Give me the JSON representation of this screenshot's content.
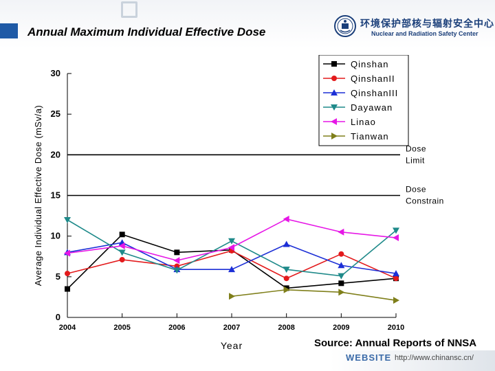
{
  "slide": {
    "title": "Annual Maximum Individual Effective Dose",
    "org_name_cn": "环境保护部核与辐射安全中心",
    "org_name_en": "Nuclear and Radiation Safety Center",
    "website_label": "WEBSITE",
    "website_url": "http://www.chinansc.cn/",
    "source_note": "Source: Annual Reports of NNSA"
  },
  "chart_data": {
    "type": "line",
    "title": "",
    "xlabel": "Year",
    "ylabel": "Average Individual Effective Dose (mSv/a)",
    "x": [
      2004,
      2005,
      2006,
      2007,
      2008,
      2009,
      2010
    ],
    "xlim": [
      2004,
      2010
    ],
    "ylim": [
      0,
      30
    ],
    "yticks": [
      0,
      5,
      10,
      15,
      20,
      25,
      30
    ],
    "legend_position": "top-right",
    "series": [
      {
        "name": "Qinshan",
        "color": "#000000",
        "marker": "square",
        "values": [
          3.5,
          10.2,
          8.0,
          8.3,
          3.6,
          4.2,
          4.8
        ]
      },
      {
        "name": "QinshanII",
        "color": "#e31a1c",
        "marker": "circle",
        "values": [
          5.4,
          7.1,
          6.3,
          8.2,
          4.8,
          7.8,
          4.8
        ]
      },
      {
        "name": "QinshanIII",
        "color": "#1c2fd6",
        "marker": "triangle-up",
        "values": [
          8.0,
          9.2,
          5.9,
          5.9,
          9.0,
          6.4,
          5.4
        ]
      },
      {
        "name": "Dayawan",
        "color": "#1f8a8a",
        "marker": "triangle-down",
        "values": [
          12.0,
          8.0,
          5.8,
          9.4,
          5.9,
          5.1,
          10.7
        ]
      },
      {
        "name": "Linao",
        "color": "#e617e6",
        "marker": "triangle-left",
        "values": [
          7.9,
          8.8,
          7.0,
          8.6,
          12.1,
          10.5,
          9.8
        ]
      },
      {
        "name": "Tianwan",
        "color": "#7f7f1a",
        "marker": "triangle-right",
        "values": [
          null,
          null,
          null,
          2.6,
          3.4,
          3.1,
          2.1
        ]
      }
    ],
    "reference_lines": [
      {
        "value": 20,
        "label_lines": [
          "Dose",
          "Limit"
        ],
        "color": "#000000"
      },
      {
        "value": 15,
        "label_lines": [
          "Dose",
          "Constrain"
        ],
        "color": "#000000"
      }
    ]
  }
}
